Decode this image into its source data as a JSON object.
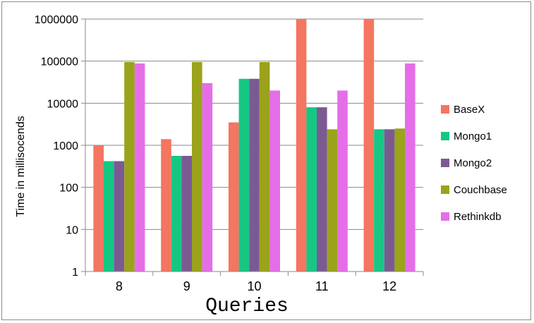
{
  "chart_data": {
    "type": "bar",
    "scale": "log",
    "categories": [
      "8",
      "9",
      "10",
      "11",
      "12"
    ],
    "series": [
      {
        "name": "BaseX",
        "color": "#f47560",
        "values": [
          1000,
          1400,
          3500,
          1000000,
          1000000
        ]
      },
      {
        "name": "Mongo1",
        "color": "#16c784",
        "values": [
          420,
          560,
          38000,
          8000,
          2400
        ]
      },
      {
        "name": "Mongo2",
        "color": "#7b5a93",
        "values": [
          420,
          560,
          38000,
          8000,
          2400
        ]
      },
      {
        "name": "Couchbase",
        "color": "#9aa31a",
        "values": [
          95000,
          95000,
          95000,
          2400,
          2500
        ]
      },
      {
        "name": "Rethinkdb",
        "color": "#e56ee8",
        "values": [
          88000,
          30000,
          20000,
          20000,
          88000
        ]
      }
    ],
    "y_ticks": [
      "1",
      "10",
      "100",
      "1000",
      "10000",
      "100000",
      "1000000"
    ],
    "ylim": [
      1,
      1000000
    ],
    "xlabel": "Queries",
    "ylabel": "Time in millisocends",
    "grid": "horizontal",
    "legend_position": "right"
  }
}
